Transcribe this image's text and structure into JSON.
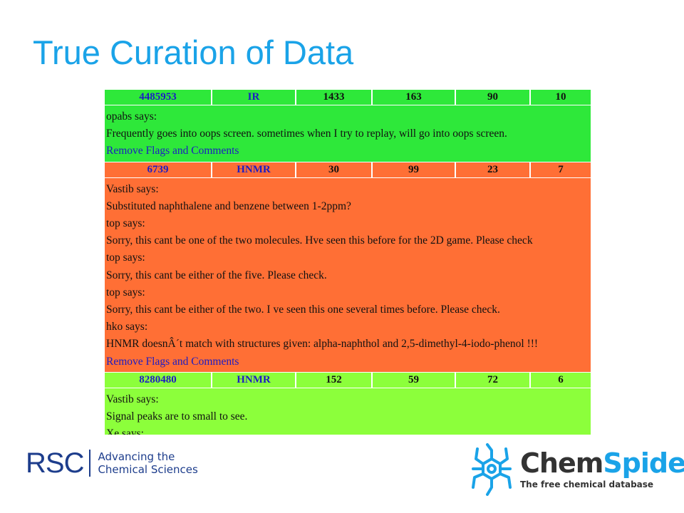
{
  "slide": {
    "title": "True Curation of Data"
  },
  "records": [
    {
      "id": "4485953",
      "type": "IR",
      "c3": "1433",
      "c4": "163",
      "c5": "90",
      "c6": "10",
      "color": "#2ee83a",
      "comments": [
        "opabs says:",
        "Frequently goes into oops screen. sometimes when I try to replay, will go into oops screen."
      ],
      "remove_link": "Remove Flags and Comments"
    },
    {
      "id": "6739",
      "type": "HNMR",
      "c3": "30",
      "c4": "99",
      "c5": "23",
      "c6": "7",
      "color": "#ff6f35",
      "comments": [
        "Vastib says:",
        "Substituted naphthalene and benzene between 1-2ppm?",
        "top says:",
        "Sorry, this cant be one of the two molecules. Hve seen this before for the 2D game. Please check",
        "top says:",
        "Sorry, this cant be either of the five. Please check.",
        "top says:",
        "Sorry, this cant be either of the two. I ve seen this one several times before. Please check.",
        "hko says:",
        "HNMR doesnÂ´t match with structures given: alpha-naphthol and 2,5-dimethyl-4-iodo-phenol !!!"
      ],
      "remove_link": "Remove Flags and Comments"
    },
    {
      "id": "8280480",
      "type": "HNMR",
      "c3": "152",
      "c4": "59",
      "c5": "72",
      "c6": "6",
      "color": "#8cff3b",
      "comments": [
        "Vastib says:",
        "Signal peaks are to small to see.",
        "Xe says:"
      ]
    }
  ],
  "logos": {
    "rsc_mark": "RSC",
    "rsc_tagline_1": "Advancing the",
    "rsc_tagline_2": "Chemical Sciences",
    "chemspider_part1": "Chem",
    "chemspider_part2": "Spider",
    "chemspider_tagline": "The free chemical database"
  }
}
